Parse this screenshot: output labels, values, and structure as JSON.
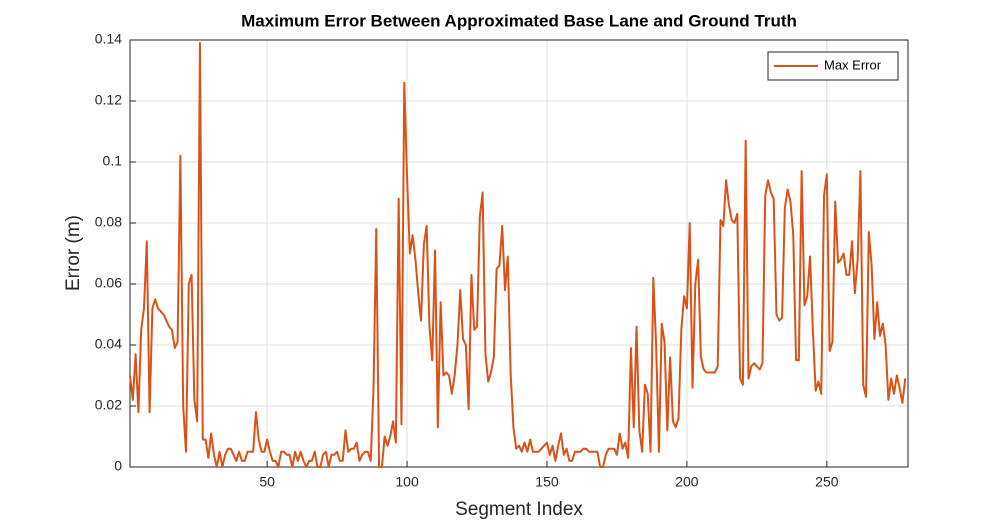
{
  "chart_data": {
    "type": "line",
    "title": "Maximum Error Between Approximated Base Lane and Ground Truth",
    "xlabel": "Segment Index",
    "ylabel": "Error (m)",
    "x": [
      1,
      2,
      3,
      4,
      5,
      6,
      7,
      8,
      9,
      10,
      11,
      12,
      13,
      14,
      15,
      16,
      17,
      18,
      19,
      20,
      21,
      22,
      23,
      24,
      25,
      26,
      27,
      28,
      29,
      30,
      31,
      32,
      33,
      34,
      35,
      36,
      37,
      38,
      39,
      40,
      41,
      42,
      43,
      44,
      45,
      46,
      47,
      48,
      49,
      50,
      51,
      52,
      53,
      54,
      55,
      56,
      57,
      58,
      59,
      60,
      61,
      62,
      63,
      64,
      65,
      66,
      67,
      68,
      69,
      70,
      71,
      72,
      73,
      74,
      75,
      76,
      77,
      78,
      79,
      80,
      81,
      82,
      83,
      84,
      85,
      86,
      87,
      88,
      89,
      90,
      91,
      92,
      93,
      94,
      95,
      96,
      97,
      98,
      99,
      100,
      101,
      102,
      103,
      104,
      105,
      106,
      107,
      108,
      109,
      110,
      111,
      112,
      113,
      114,
      115,
      116,
      117,
      118,
      119,
      120,
      121,
      122,
      123,
      124,
      125,
      126,
      127,
      128,
      129,
      130,
      131,
      132,
      133,
      134,
      135,
      136,
      137,
      138,
      139,
      140,
      141,
      142,
      143,
      144,
      145,
      146,
      147,
      148,
      149,
      150,
      151,
      152,
      153,
      154,
      155,
      156,
      157,
      158,
      159,
      160,
      161,
      162,
      163,
      164,
      165,
      166,
      167,
      168,
      169,
      170,
      171,
      172,
      173,
      174,
      175,
      176,
      177,
      178,
      179,
      180,
      181,
      182,
      183,
      184,
      185,
      186,
      187,
      188,
      189,
      190,
      191,
      192,
      193,
      194,
      195,
      196,
      197,
      198,
      199,
      200,
      201,
      202,
      203,
      204,
      205,
      206,
      207,
      208,
      209,
      210,
      211,
      212,
      213,
      214,
      215,
      216,
      217,
      218,
      219,
      220,
      221,
      222,
      223,
      224,
      225,
      226,
      227,
      228,
      229,
      230,
      231,
      232,
      233,
      234,
      235,
      236,
      237,
      238,
      239,
      240,
      241,
      242,
      243,
      244,
      245,
      246,
      247,
      248,
      249,
      250,
      251,
      252,
      253,
      254,
      255,
      256,
      257,
      258,
      259,
      260,
      261,
      262,
      263,
      264,
      265,
      266,
      267,
      268,
      269,
      270,
      271,
      272,
      273,
      274,
      275,
      276,
      277,
      278
    ],
    "series": [
      {
        "name": "Max Error",
        "color": "#d95319",
        "values": [
          0.03,
          0.022,
          0.037,
          0.018,
          0.045,
          0.052,
          0.074,
          0.018,
          0.052,
          0.055,
          0.052,
          0.051,
          0.05,
          0.048,
          0.046,
          0.045,
          0.039,
          0.041,
          0.102,
          0.02,
          0.005,
          0.06,
          0.063,
          0.022,
          0.015,
          0.139,
          0.009,
          0.009,
          0.003,
          0.011,
          0.004,
          0.0,
          0.005,
          0.0,
          0.004,
          0.006,
          0.006,
          0.004,
          0.002,
          0.005,
          0.002,
          0.002,
          0.005,
          0.005,
          0.005,
          0.018,
          0.009,
          0.005,
          0.005,
          0.009,
          0.005,
          0.002,
          0.002,
          0.0,
          0.005,
          0.005,
          0.004,
          0.004,
          0.0,
          0.005,
          0.002,
          0.005,
          0.002,
          0.0,
          0.002,
          0.002,
          0.005,
          0.0,
          0.0,
          0.004,
          0.005,
          0.0,
          0.004,
          0.004,
          0.005,
          0.002,
          0.002,
          0.012,
          0.005,
          0.006,
          0.006,
          0.008,
          0.002,
          0.004,
          0.005,
          0.005,
          0.002,
          0.025,
          0.078,
          0.0,
          0.0,
          0.01,
          0.007,
          0.01,
          0.015,
          0.008,
          0.088,
          0.014,
          0.126,
          0.095,
          0.07,
          0.076,
          0.068,
          0.057,
          0.048,
          0.073,
          0.079,
          0.046,
          0.035,
          0.071,
          0.013,
          0.054,
          0.03,
          0.031,
          0.03,
          0.024,
          0.03,
          0.04,
          0.058,
          0.042,
          0.04,
          0.019,
          0.063,
          0.045,
          0.046,
          0.082,
          0.09,
          0.037,
          0.028,
          0.031,
          0.036,
          0.065,
          0.066,
          0.079,
          0.058,
          0.069,
          0.031,
          0.013,
          0.006,
          0.007,
          0.005,
          0.008,
          0.005,
          0.009,
          0.005,
          0.005,
          0.005,
          0.006,
          0.007,
          0.008,
          0.004,
          0.007,
          0.002,
          0.007,
          0.011,
          0.004,
          0.006,
          0.002,
          0.002,
          0.005,
          0.005,
          0.005,
          0.006,
          0.006,
          0.005,
          0.005,
          0.005,
          0.005,
          0.0,
          0.0,
          0.004,
          0.006,
          0.006,
          0.006,
          0.004,
          0.011,
          0.006,
          0.008,
          0.003,
          0.039,
          0.013,
          0.046,
          0.012,
          0.005,
          0.027,
          0.024,
          0.005,
          0.062,
          0.04,
          0.005,
          0.047,
          0.041,
          0.012,
          0.036,
          0.015,
          0.013,
          0.016,
          0.045,
          0.056,
          0.052,
          0.08,
          0.026,
          0.06,
          0.068,
          0.036,
          0.032,
          0.031,
          0.031,
          0.031,
          0.031,
          0.033,
          0.081,
          0.079,
          0.094,
          0.086,
          0.081,
          0.08,
          0.083,
          0.029,
          0.027,
          0.107,
          0.029,
          0.033,
          0.034,
          0.033,
          0.032,
          0.034,
          0.089,
          0.094,
          0.09,
          0.088,
          0.05,
          0.048,
          0.049,
          0.085,
          0.091,
          0.087,
          0.076,
          0.035,
          0.035,
          0.097,
          0.053,
          0.056,
          0.069,
          0.045,
          0.025,
          0.028,
          0.024,
          0.089,
          0.096,
          0.038,
          0.041,
          0.087,
          0.067,
          0.068,
          0.07,
          0.063,
          0.063,
          0.074,
          0.057,
          0.068,
          0.097,
          0.027,
          0.023,
          0.077,
          0.066,
          0.042,
          0.054,
          0.043,
          0.047,
          0.04,
          0.022,
          0.029,
          0.024,
          0.03,
          0.026,
          0.021,
          0.029
        ]
      }
    ],
    "xlim": [
      1,
      279
    ],
    "ylim": [
      0,
      0.14
    ],
    "xticks": [
      50,
      100,
      150,
      200,
      250
    ],
    "yticks": [
      0,
      0.02,
      0.04,
      0.06,
      0.08,
      0.1,
      0.12,
      0.14
    ],
    "grid": true,
    "legend": "northeast"
  }
}
